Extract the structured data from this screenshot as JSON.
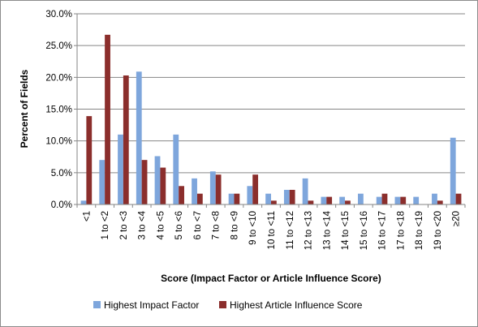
{
  "chart_data": {
    "type": "bar",
    "xlabel": "Score (Impact Factor or Article Influence Score)",
    "ylabel": "Percent of Fields",
    "ylim": [
      0,
      30
    ],
    "yticks": [
      "0.0%",
      "5.0%",
      "10.0%",
      "15.0%",
      "20.0%",
      "25.0%",
      "30.0%"
    ],
    "grid": "horizontal",
    "legend_position": "bottom",
    "categories": [
      "<1",
      "1 to <2",
      "2 to <3",
      "3 to <4",
      "4 to <5",
      "5 to <6",
      "6 to <7",
      "7 to <8",
      "8 to <9",
      "9 to <10",
      "10 to <11",
      "11 to <12",
      "12 to <13",
      "13 to <14",
      "14 to <15",
      "15 to <16",
      "16 to <17",
      "17 to <18",
      "18 to <19",
      "19 to <20",
      "≥20"
    ],
    "series": [
      {
        "name": "Highest Impact Factor",
        "color": "#7ea6dc",
        "values": [
          0.6,
          7.0,
          11.0,
          20.9,
          7.6,
          11.0,
          4.1,
          5.2,
          1.7,
          2.9,
          1.7,
          2.3,
          4.1,
          1.2,
          1.2,
          1.7,
          1.2,
          1.2,
          1.2,
          1.7,
          10.5
        ]
      },
      {
        "name": "Highest Article Influence Score",
        "color": "#8b2e2c",
        "values": [
          13.9,
          26.7,
          20.3,
          7.0,
          5.8,
          2.9,
          1.7,
          4.7,
          1.7,
          4.7,
          0.6,
          2.3,
          0.6,
          1.2,
          0.6,
          0,
          1.7,
          1.2,
          0,
          0.6,
          1.7
        ]
      }
    ]
  }
}
